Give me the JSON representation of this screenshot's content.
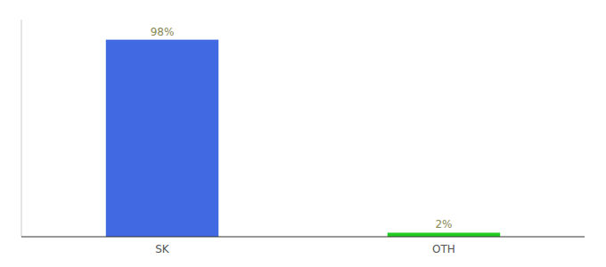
{
  "chart_data": {
    "type": "bar",
    "categories": [
      "SK",
      "OTH"
    ],
    "values": [
      98,
      2
    ],
    "value_labels": [
      "98%",
      "2%"
    ],
    "colors": [
      "#4169e1",
      "#22cc22"
    ],
    "ylim": [
      0,
      108
    ],
    "data_labels": true,
    "tick_labels": "x",
    "grid": false
  }
}
